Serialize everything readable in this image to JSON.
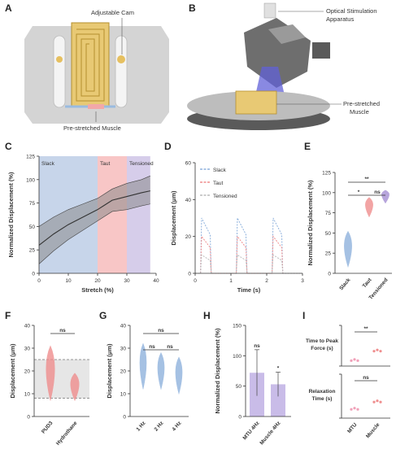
{
  "panels": {
    "A": {
      "label": "A",
      "callouts": {
        "top": "Adjustable Cam",
        "bottom": "Pre-stretched Muscle"
      }
    },
    "B": {
      "label": "B",
      "callouts": {
        "top": "Optical Stimulation",
        "top2": "Apparatus",
        "bottom": "Pre-stretched",
        "bottom2": "Muscle"
      }
    },
    "C": {
      "label": "C"
    },
    "D": {
      "label": "D"
    },
    "E": {
      "label": "E"
    },
    "F": {
      "label": "F"
    },
    "G": {
      "label": "G"
    },
    "H": {
      "label": "H"
    },
    "I": {
      "label": "I"
    }
  },
  "colors": {
    "slack": "#c7d5ea",
    "taut": "#f8c6c6",
    "tensioned": "#d6cdea",
    "blue": "#8fb2dd",
    "red": "#ef8e8e",
    "purple": "#a68fd4",
    "gray": "#666666"
  },
  "chart_data": [
    {
      "panel": "C",
      "type": "line",
      "xlabel": "Stretch (%)",
      "ylabel": "Normalized Displacement (%)",
      "xlim": [
        0,
        40
      ],
      "ylim": [
        0,
        125
      ],
      "xticks": [
        "0",
        "10",
        "20",
        "30",
        "40"
      ],
      "yticks": [
        "0",
        "25",
        "50",
        "75",
        "100",
        "125"
      ],
      "regions": [
        {
          "label": "Slack",
          "from": 0,
          "to": 20
        },
        {
          "label": "Taut",
          "from": 20,
          "to": 30
        },
        {
          "label": "Tensioned",
          "from": 30,
          "to": 38
        }
      ],
      "x": [
        0,
        5,
        10,
        15,
        20,
        25,
        30,
        35,
        38
      ],
      "mean": [
        30,
        42,
        52,
        60,
        68,
        78,
        82,
        86,
        88
      ],
      "upper": [
        50,
        60,
        68,
        74,
        80,
        90,
        96,
        100,
        104
      ],
      "lower": [
        10,
        24,
        36,
        46,
        56,
        66,
        68,
        72,
        74
      ]
    },
    {
      "panel": "D",
      "type": "line",
      "xlabel": "Time (s)",
      "ylabel": "Displacement (μm)",
      "xlim": [
        0,
        3
      ],
      "ylim": [
        0,
        60
      ],
      "xticks": [
        "0",
        "1",
        "2",
        "3"
      ],
      "yticks": [
        "0",
        "20",
        "40",
        "60"
      ],
      "series": [
        {
          "name": "Slack",
          "peak": 30
        },
        {
          "name": "Taut",
          "peak": 20
        },
        {
          "name": "Tensioned",
          "peak": 10
        }
      ],
      "pulse_starts": [
        0.15,
        1.15,
        2.15
      ]
    },
    {
      "panel": "E",
      "type": "violin",
      "ylabel": "Normalized Displacement (%)",
      "ylim": [
        0,
        125
      ],
      "yticks": [
        "0",
        "25",
        "50",
        "75",
        "100",
        "125"
      ],
      "categories": [
        "Slack",
        "Taut",
        "Tensioned"
      ],
      "centers": [
        30,
        82,
        95
      ],
      "spreads": [
        22,
        12,
        8
      ],
      "significance": [
        "*",
        "ns",
        "**"
      ]
    },
    {
      "panel": "F",
      "type": "violin",
      "ylabel": "Displacement (μm)",
      "ylim": [
        0,
        40
      ],
      "yticks": [
        "0",
        "10",
        "20",
        "30",
        "40"
      ],
      "categories": [
        "PUD3",
        "Hydrothane"
      ],
      "centers": [
        19,
        13
      ],
      "spreads": [
        12,
        6
      ],
      "band": [
        8,
        25
      ],
      "significance": [
        "ns"
      ]
    },
    {
      "panel": "G",
      "type": "violin",
      "ylabel": "Displacement (μm)",
      "ylim": [
        0,
        40
      ],
      "yticks": [
        "0",
        "10",
        "20",
        "30",
        "40"
      ],
      "categories": [
        "1 Hz",
        "2 Hz",
        "4 Hz"
      ],
      "centers": [
        22,
        20,
        18
      ],
      "spreads": [
        10,
        8,
        8
      ],
      "significance": [
        "ns",
        "ns",
        "ns"
      ]
    },
    {
      "panel": "H",
      "type": "bar",
      "ylabel": "Normalized Displacement (%)",
      "ylim": [
        0,
        150
      ],
      "yticks": [
        "0",
        "50",
        "100",
        "150"
      ],
      "categories": [
        "MTU 4Hz",
        "Muscle 4Hz"
      ],
      "values": [
        72,
        53
      ],
      "errors": [
        38,
        20
      ],
      "significance": [
        "ns",
        "*"
      ]
    },
    {
      "panel": "I",
      "type": "scatter",
      "subplots": [
        {
          "ylabel": "Time to Peak",
          "ylabel2": "Force (s)",
          "ylim": [
            0,
            0.6
          ],
          "yticks": [
            "0.0",
            "0.2",
            "0.4",
            "0.6"
          ],
          "values": [
            0.08,
            0.22
          ],
          "significance": "**"
        },
        {
          "ylabel": "Relaxation",
          "ylabel2": "Time (s)",
          "ylim": [
            0,
            0.6
          ],
          "yticks": [
            "0.0",
            "0.2",
            "0.4",
            "0.6"
          ],
          "values": [
            0.12,
            0.22
          ],
          "significance": "ns"
        }
      ],
      "categories": [
        "MTU",
        "Muscle"
      ]
    }
  ]
}
